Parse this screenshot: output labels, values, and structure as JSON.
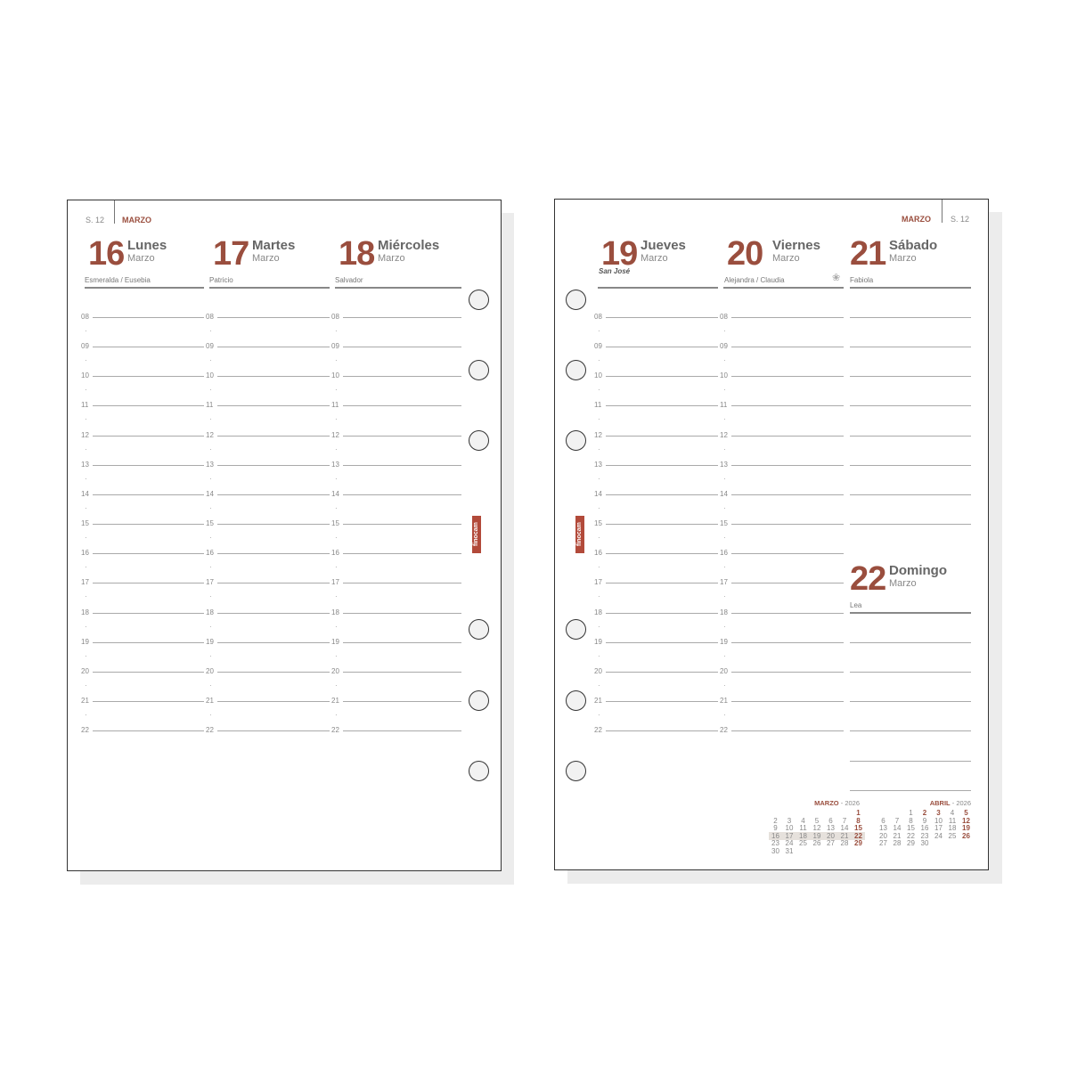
{
  "left_page": {
    "week": "S. 12",
    "month": "MARZO",
    "days": [
      {
        "num": "16",
        "name": "Lunes",
        "month": "Marzo",
        "saint": "Esmeralda / Eusebia"
      },
      {
        "num": "17",
        "name": "Martes",
        "month": "Marzo",
        "saint": "Patricio"
      },
      {
        "num": "18",
        "name": "Miércoles",
        "month": "Marzo",
        "saint": "Salvador"
      }
    ]
  },
  "right_page": {
    "week": "S. 12",
    "month": "MARZO",
    "days": [
      {
        "num": "19",
        "name": "Jueves",
        "month": "Marzo",
        "holiday": "San José",
        "saint": ""
      },
      {
        "num": "20",
        "name": "Viernes",
        "month": "Marzo",
        "saint": "Alejandra / Claudia",
        "icon": "spring-flower-icon"
      },
      {
        "num": "21",
        "name": "Sábado",
        "month": "Marzo",
        "saint": "Fabiola"
      },
      {
        "num": "22",
        "name": "Domingo",
        "month": "Marzo",
        "saint": "Lea"
      }
    ]
  },
  "hours": [
    "08",
    "09",
    "10",
    "11",
    "12",
    "13",
    "14",
    "15",
    "16",
    "17",
    "18",
    "19",
    "20",
    "21",
    "22"
  ],
  "logo": "finocam",
  "mini_calendars": [
    {
      "month": "MARZO",
      "year": "2026",
      "start_col": 6,
      "days": [
        "1",
        "2",
        "3",
        "4",
        "5",
        "6",
        "7",
        "8",
        "9",
        "10",
        "11",
        "12",
        "13",
        "14",
        "15",
        "16",
        "17",
        "18",
        "19",
        "20",
        "21",
        "22",
        "23",
        "24",
        "25",
        "26",
        "27",
        "28",
        "29",
        "30",
        "31"
      ],
      "bold": [
        "1",
        "8",
        "15",
        "22",
        "29"
      ],
      "highlight_week": [
        "16",
        "22"
      ]
    },
    {
      "month": "ABRIL",
      "year": "2026",
      "start_col": 2,
      "days": [
        "1",
        "2",
        "3",
        "4",
        "5",
        "6",
        "7",
        "8",
        "9",
        "10",
        "11",
        "12",
        "13",
        "14",
        "15",
        "16",
        "17",
        "18",
        "19",
        "20",
        "21",
        "22",
        "23",
        "24",
        "25",
        "26",
        "27",
        "28",
        "29",
        "30"
      ],
      "bold": [
        "2",
        "3",
        "5",
        "12",
        "19",
        "26"
      ]
    }
  ],
  "colors": {
    "accent": "#9a4e3e",
    "sunday_light": "#dcc0b5",
    "logo": "#b24a3a"
  }
}
